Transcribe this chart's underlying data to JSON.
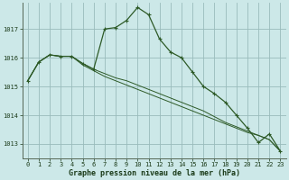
{
  "background_color": "#cce8e8",
  "plot_bg_color": "#cce8e8",
  "grid_color": "#99bbbb",
  "line_color": "#2d5a27",
  "title": "Graphe pression niveau de la mer (hPa)",
  "title_color": "#1a3a18",
  "xlim": [
    -0.5,
    23.5
  ],
  "ylim": [
    1012.5,
    1017.9
  ],
  "ytick_values": [
    1013,
    1014,
    1015,
    1016,
    1017
  ],
  "xtick_labels": [
    "0",
    "1",
    "2",
    "3",
    "4",
    "5",
    "6",
    "7",
    "8",
    "9",
    "10",
    "11",
    "12",
    "13",
    "14",
    "15",
    "16",
    "17",
    "18",
    "19",
    "20",
    "21",
    "22",
    "23"
  ],
  "series1": [
    1015.2,
    1015.85,
    1016.1,
    1016.05,
    1016.05,
    1015.8,
    1015.6,
    1017.0,
    1017.05,
    1017.3,
    1017.75,
    1017.5,
    1016.65,
    1016.2,
    1016.0,
    1015.5,
    1015.0,
    1014.75,
    1014.45,
    1014.0,
    1013.55,
    1013.05,
    1013.35,
    1012.75
  ],
  "series2": [
    1015.2,
    1015.85,
    1016.1,
    1016.05,
    1016.05,
    1015.8,
    1015.6,
    1015.45,
    1015.3,
    1015.2,
    1015.05,
    1014.9,
    1014.75,
    1014.6,
    1014.45,
    1014.3,
    1014.15,
    1013.95,
    1013.75,
    1013.6,
    1013.45,
    1013.3,
    1013.15,
    1012.75
  ],
  "series3": [
    1015.2,
    1015.85,
    1016.1,
    1016.05,
    1016.05,
    1015.75,
    1015.55,
    1015.35,
    1015.2,
    1015.05,
    1014.9,
    1014.75,
    1014.6,
    1014.45,
    1014.3,
    1014.15,
    1014.0,
    1013.85,
    1013.7,
    1013.55,
    1013.4,
    1013.3,
    1013.15,
    1012.75
  ]
}
